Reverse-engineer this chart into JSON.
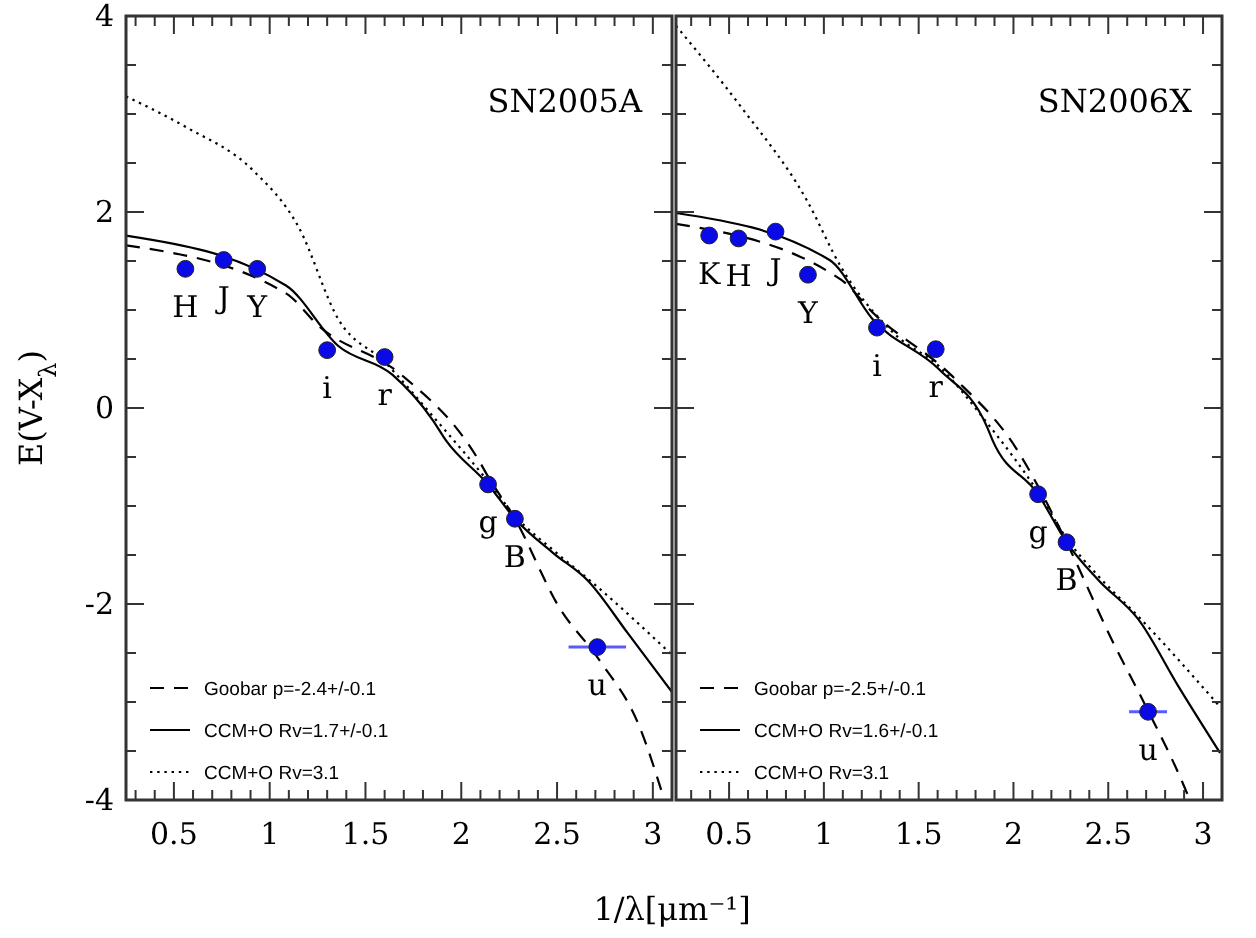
{
  "chart_data": [
    {
      "type": "line",
      "title": "SN2005A",
      "xlabel": "1/λ[μm⁻¹]",
      "ylabel": "E(V-X$_{λ}$)",
      "xlim": [
        0.25,
        3.1
      ],
      "ylim": [
        -4,
        4
      ],
      "xticks": [
        {
          "value": 0.3,
          "label": null
        },
        {
          "value": 0.4,
          "label": null
        },
        0.5,
        {
          "value": 0.6,
          "label": null
        },
        {
          "value": 0.7,
          "label": null
        },
        {
          "value": 0.8,
          "label": null
        },
        {
          "value": 0.9,
          "label": null
        },
        1,
        {
          "value": 1.1,
          "label": null
        },
        {
          "value": 1.2,
          "label": null
        },
        {
          "value": 1.3,
          "label": null
        },
        {
          "value": 1.4,
          "label": null
        },
        1.5,
        {
          "value": 1.6,
          "label": null
        },
        {
          "value": 1.7,
          "label": null
        },
        {
          "value": 1.8,
          "label": null
        },
        {
          "value": 1.9,
          "label": null
        },
        2,
        {
          "value": 2.1,
          "label": null
        },
        {
          "value": 2.2,
          "label": null
        },
        {
          "value": 2.3,
          "label": null
        },
        {
          "value": 2.4,
          "label": null
        },
        2.5,
        {
          "value": 2.6,
          "label": null
        },
        {
          "value": 2.7,
          "label": null
        },
        {
          "value": 2.8,
          "label": null
        },
        {
          "value": 2.9,
          "label": null
        },
        3
      ],
      "yticks": [
        -4,
        {
          "value": -3.5,
          "label": null
        },
        {
          "value": -3,
          "label": null
        },
        {
          "value": -2.5,
          "label": null
        },
        -2,
        {
          "value": -1.5,
          "label": null
        },
        {
          "value": -1,
          "label": null
        },
        {
          "value": -0.5,
          "label": null
        },
        0,
        {
          "value": 0.5,
          "label": null
        },
        {
          "value": 1,
          "label": null
        },
        {
          "value": 1.5,
          "label": null
        },
        2,
        {
          "value": 2.5,
          "label": null
        },
        {
          "value": 3,
          "label": null
        },
        {
          "value": 3.5,
          "label": null
        },
        4
      ],
      "legend": "bottom left",
      "grid": false,
      "series": [
        {
          "name": "Goobar p=-2.4+/-0.1",
          "color": "#000000",
          "line_style": "dashed",
          "x": [
            0.25,
            1.085,
            1.26,
            1.68,
            2.09,
            2.14,
            2.28,
            2.51,
            2.72,
            2.93,
            3.06
          ],
          "values": [
            1.66,
            1.17,
            0.83,
            0.35,
            -0.53,
            -0.7,
            -1.13,
            -2.03,
            -2.57,
            -3.25,
            -4.0
          ]
        },
        {
          "name": "CCM+O Rv=1.7+/-0.1",
          "color": "#000000",
          "line_style": "solid",
          "x": [
            0.25,
            1.085,
            1.36,
            1.64,
            1.85,
            1.92,
            2.14,
            2.28,
            2.48,
            2.66,
            2.87,
            3.1
          ],
          "values": [
            1.76,
            1.25,
            0.63,
            0.34,
            -0.12,
            -0.33,
            -0.78,
            -1.13,
            -1.48,
            -1.76,
            -2.3,
            -2.9
          ]
        },
        {
          "name": "CCM+O Rv=3.1",
          "color": "#000000",
          "line_style": "dotted",
          "x": [
            0.25,
            0.56,
            0.91,
            1.15,
            1.36,
            1.6,
            1.85,
            2.14,
            2.28,
            2.48,
            2.69,
            3.1
          ],
          "values": [
            3.18,
            2.87,
            2.43,
            1.85,
            0.9,
            0.47,
            -0.08,
            -0.75,
            -1.1,
            -1.45,
            -1.79,
            -2.52
          ]
        },
        {
          "type": "scatter",
          "color": "#0a0ae6",
          "marker": "circle",
          "x": [
            0.56,
            0.76,
            0.935,
            1.3,
            1.6,
            2.14,
            2.28,
            2.71
          ],
          "values": [
            1.42,
            1.51,
            1.42,
            0.59,
            0.52,
            -0.78,
            -1.13,
            -2.44
          ],
          "xerrors": [
            null,
            null,
            null,
            null,
            null,
            null,
            null,
            0.15
          ]
        }
      ],
      "annotations": [
        {
          "text": "H",
          "x": 0.56,
          "y": 1.42
        },
        {
          "text": "J",
          "x": 0.76,
          "y": 1.51
        },
        {
          "text": "Y",
          "x": 0.935,
          "y": 1.42
        },
        {
          "text": "i",
          "x": 1.3,
          "y": 0.59
        },
        {
          "text": "r",
          "x": 1.6,
          "y": 0.52
        },
        {
          "text": "g",
          "x": 2.14,
          "y": -0.78
        },
        {
          "text": "B",
          "x": 2.28,
          "y": -1.13
        },
        {
          "text": "u",
          "x": 2.71,
          "y": -2.44
        }
      ]
    },
    {
      "type": "line",
      "title": "SN2006X",
      "tick_labels": "x",
      "xlim": [
        0.22,
        3.1
      ],
      "ylim": [
        -4,
        4
      ],
      "xticks": [
        {
          "value": 0.3,
          "label": null
        },
        {
          "value": 0.4,
          "label": null
        },
        0.5,
        {
          "value": 0.6,
          "label": null
        },
        {
          "value": 0.7,
          "label": null
        },
        {
          "value": 0.8,
          "label": null
        },
        {
          "value": 0.9,
          "label": null
        },
        1,
        {
          "value": 1.1,
          "label": null
        },
        {
          "value": 1.2,
          "label": null
        },
        {
          "value": 1.3,
          "label": null
        },
        {
          "value": 1.4,
          "label": null
        },
        1.5,
        {
          "value": 1.6,
          "label": null
        },
        {
          "value": 1.7,
          "label": null
        },
        {
          "value": 1.8,
          "label": null
        },
        {
          "value": 1.9,
          "label": null
        },
        2,
        {
          "value": 2.1,
          "label": null
        },
        {
          "value": 2.2,
          "label": null
        },
        {
          "value": 2.3,
          "label": null
        },
        {
          "value": 2.4,
          "label": null
        },
        2.5,
        {
          "value": 2.6,
          "label": null
        },
        {
          "value": 2.7,
          "label": null
        },
        {
          "value": 2.8,
          "label": null
        },
        {
          "value": 2.9,
          "label": null
        },
        3
      ],
      "yticks": [
        -4,
        {
          "value": -3.5,
          "label": null
        },
        {
          "value": -3,
          "label": null
        },
        {
          "value": -2.5,
          "label": null
        },
        -2,
        {
          "value": -1.5,
          "label": null
        },
        {
          "value": -1,
          "label": null
        },
        {
          "value": -0.5,
          "label": null
        },
        0,
        {
          "value": 0.5,
          "label": null
        },
        {
          "value": 1,
          "label": null
        },
        {
          "value": 1.5,
          "label": null
        },
        2,
        {
          "value": 2.5,
          "label": null
        },
        {
          "value": 3,
          "label": null
        },
        {
          "value": 3.5,
          "label": null
        },
        4
      ],
      "legend": "bottom left",
      "grid": false,
      "series": [
        {
          "name": "Goobar p=-2.5+/-0.1",
          "color": "#000000",
          "line_style": "dashed",
          "x": [
            0.22,
            1.09,
            1.26,
            1.68,
            2.03,
            2.13,
            2.28,
            2.52,
            2.7,
            2.9,
            2.93
          ],
          "values": [
            1.88,
            1.31,
            0.97,
            0.32,
            -0.46,
            -0.8,
            -1.37,
            -2.37,
            -3.05,
            -3.86,
            -4.0
          ]
        },
        {
          "name": "CCM+O Rv=1.6+/-0.1",
          "color": "#000000",
          "line_style": "solid",
          "x": [
            0.22,
            1.03,
            1.26,
            1.61,
            1.86,
            1.89,
            2.13,
            2.28,
            2.45,
            2.66,
            2.87,
            3.09
          ],
          "values": [
            1.99,
            1.51,
            0.9,
            0.39,
            -0.19,
            -0.33,
            -0.88,
            -1.37,
            -1.76,
            -2.16,
            -2.84,
            -3.52
          ]
        },
        {
          "name": "CCM+O Rv=3.1",
          "color": "#000000",
          "line_style": "dotted",
          "x": [
            0.22,
            0.56,
            0.91,
            1.09,
            1.37,
            1.61,
            1.86,
            2.13,
            2.28,
            2.45,
            2.66,
            3.09
          ],
          "values": [
            3.9,
            3.08,
            2.12,
            1.44,
            0.76,
            0.42,
            -0.15,
            -0.86,
            -1.33,
            -1.72,
            -2.13,
            -3.05
          ]
        },
        {
          "type": "scatter",
          "color": "#0a0ae6",
          "marker": "circle",
          "x": [
            0.395,
            0.55,
            0.745,
            0.916,
            1.28,
            1.59,
            2.13,
            2.28,
            2.71
          ],
          "values": [
            1.76,
            1.73,
            1.8,
            1.36,
            0.82,
            0.6,
            -0.88,
            -1.37,
            -3.1
          ],
          "xerrors": [
            null,
            null,
            null,
            null,
            null,
            null,
            null,
            null,
            0.1
          ]
        }
      ],
      "annotations": [
        {
          "text": "K",
          "x": 0.395,
          "y": 1.76
        },
        {
          "text": "H",
          "x": 0.55,
          "y": 1.73
        },
        {
          "text": "J",
          "x": 0.745,
          "y": 1.8
        },
        {
          "text": "Y",
          "x": 0.916,
          "y": 1.36
        },
        {
          "text": "i",
          "x": 1.28,
          "y": 0.82
        },
        {
          "text": "r",
          "x": 1.59,
          "y": 0.6
        },
        {
          "text": "g",
          "x": 2.13,
          "y": -0.88
        },
        {
          "text": "B",
          "x": 2.28,
          "y": -1.37
        },
        {
          "text": "u",
          "x": 2.71,
          "y": -3.1
        }
      ]
    }
  ]
}
